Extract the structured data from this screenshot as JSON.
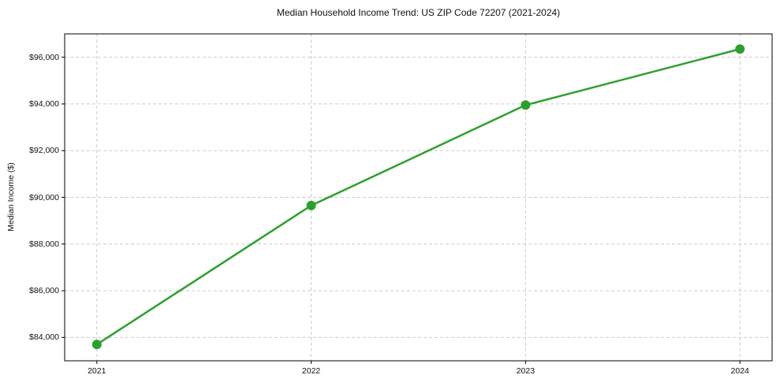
{
  "chart_data": {
    "type": "line",
    "title": "Median Household Income Trend: US ZIP Code 72207 (2021-2024)",
    "xlabel": "",
    "ylabel": "Median Income ($)",
    "categories": [
      "2021",
      "2022",
      "2023",
      "2024"
    ],
    "series": [
      {
        "name": "Median household income",
        "values": [
          83700,
          89650,
          93950,
          96350
        ],
        "color": "#2ca02c",
        "marker": "circle"
      }
    ],
    "yticks": [
      {
        "value": 84000,
        "label": "$84,000"
      },
      {
        "value": 86000,
        "label": "$86,000"
      },
      {
        "value": 88000,
        "label": "$88,000"
      },
      {
        "value": 90000,
        "label": "$90,000"
      },
      {
        "value": 92000,
        "label": "$92,000"
      },
      {
        "value": 94000,
        "label": "$94,000"
      },
      {
        "value": 96000,
        "label": "$96,000"
      }
    ],
    "ylim": [
      83000,
      97000
    ],
    "xlim": [
      2020.85,
      2024.15
    ],
    "x_numeric": [
      2021,
      2022,
      2023,
      2024
    ],
    "grid": "dashed",
    "grid_color": "#cccccc",
    "spine_color": "#000000",
    "legend": "none",
    "background_color": "#ffffff"
  }
}
